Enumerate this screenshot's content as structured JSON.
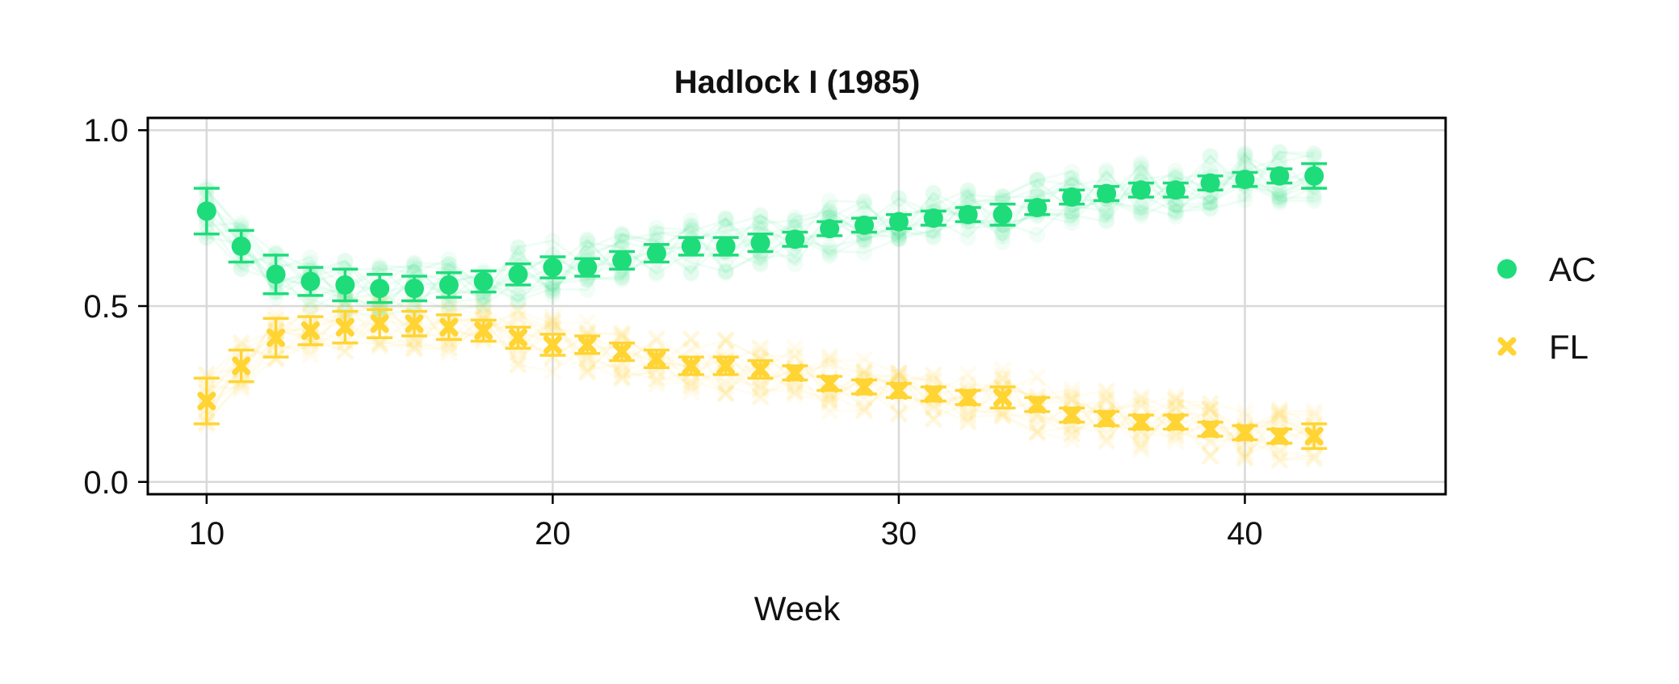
{
  "chart_data": {
    "type": "scatter",
    "title": "Hadlock I (1985)",
    "xlabel": "Week",
    "ylabel": "",
    "xlim": [
      8.3,
      45.8
    ],
    "ylim": [
      -0.035,
      1.035
    ],
    "xticks": [
      "10",
      "20",
      "30",
      "40"
    ],
    "yticks": [
      "0.0",
      "0.5",
      "1.0"
    ],
    "grid": true,
    "legend_position": "right",
    "x": [
      10,
      11,
      12,
      13,
      14,
      15,
      16,
      17,
      18,
      19,
      20,
      21,
      22,
      23,
      24,
      25,
      26,
      27,
      28,
      29,
      30,
      31,
      32,
      33,
      34,
      35,
      36,
      37,
      38,
      39,
      40,
      41,
      42
    ],
    "series": [
      {
        "name": "AC",
        "marker": "circle",
        "color": "#1edc7a",
        "values": [
          0.77,
          0.67,
          0.59,
          0.57,
          0.56,
          0.55,
          0.55,
          0.56,
          0.57,
          0.59,
          0.61,
          0.61,
          0.63,
          0.65,
          0.67,
          0.67,
          0.68,
          0.69,
          0.72,
          0.73,
          0.74,
          0.75,
          0.76,
          0.76,
          0.78,
          0.81,
          0.82,
          0.83,
          0.83,
          0.85,
          0.86,
          0.87,
          0.87
        ],
        "error": [
          0.065,
          0.045,
          0.055,
          0.04,
          0.045,
          0.04,
          0.035,
          0.035,
          0.03,
          0.03,
          0.03,
          0.025,
          0.025,
          0.025,
          0.025,
          0.025,
          0.025,
          0.02,
          0.02,
          0.02,
          0.02,
          0.02,
          0.02,
          0.03,
          0.02,
          0.02,
          0.02,
          0.02,
          0.02,
          0.02,
          0.02,
          0.02,
          0.035
        ]
      },
      {
        "name": "FL",
        "marker": "x",
        "color": "#ffd433",
        "values": [
          0.23,
          0.33,
          0.41,
          0.43,
          0.44,
          0.45,
          0.45,
          0.44,
          0.43,
          0.41,
          0.39,
          0.39,
          0.37,
          0.35,
          0.33,
          0.33,
          0.32,
          0.31,
          0.28,
          0.27,
          0.26,
          0.25,
          0.24,
          0.24,
          0.22,
          0.19,
          0.18,
          0.17,
          0.17,
          0.15,
          0.14,
          0.13,
          0.13
        ],
        "error": [
          0.065,
          0.045,
          0.055,
          0.04,
          0.045,
          0.04,
          0.035,
          0.035,
          0.03,
          0.03,
          0.03,
          0.025,
          0.025,
          0.025,
          0.025,
          0.025,
          0.025,
          0.02,
          0.02,
          0.02,
          0.02,
          0.02,
          0.02,
          0.03,
          0.02,
          0.02,
          0.02,
          0.02,
          0.02,
          0.02,
          0.02,
          0.02,
          0.035
        ]
      }
    ]
  }
}
